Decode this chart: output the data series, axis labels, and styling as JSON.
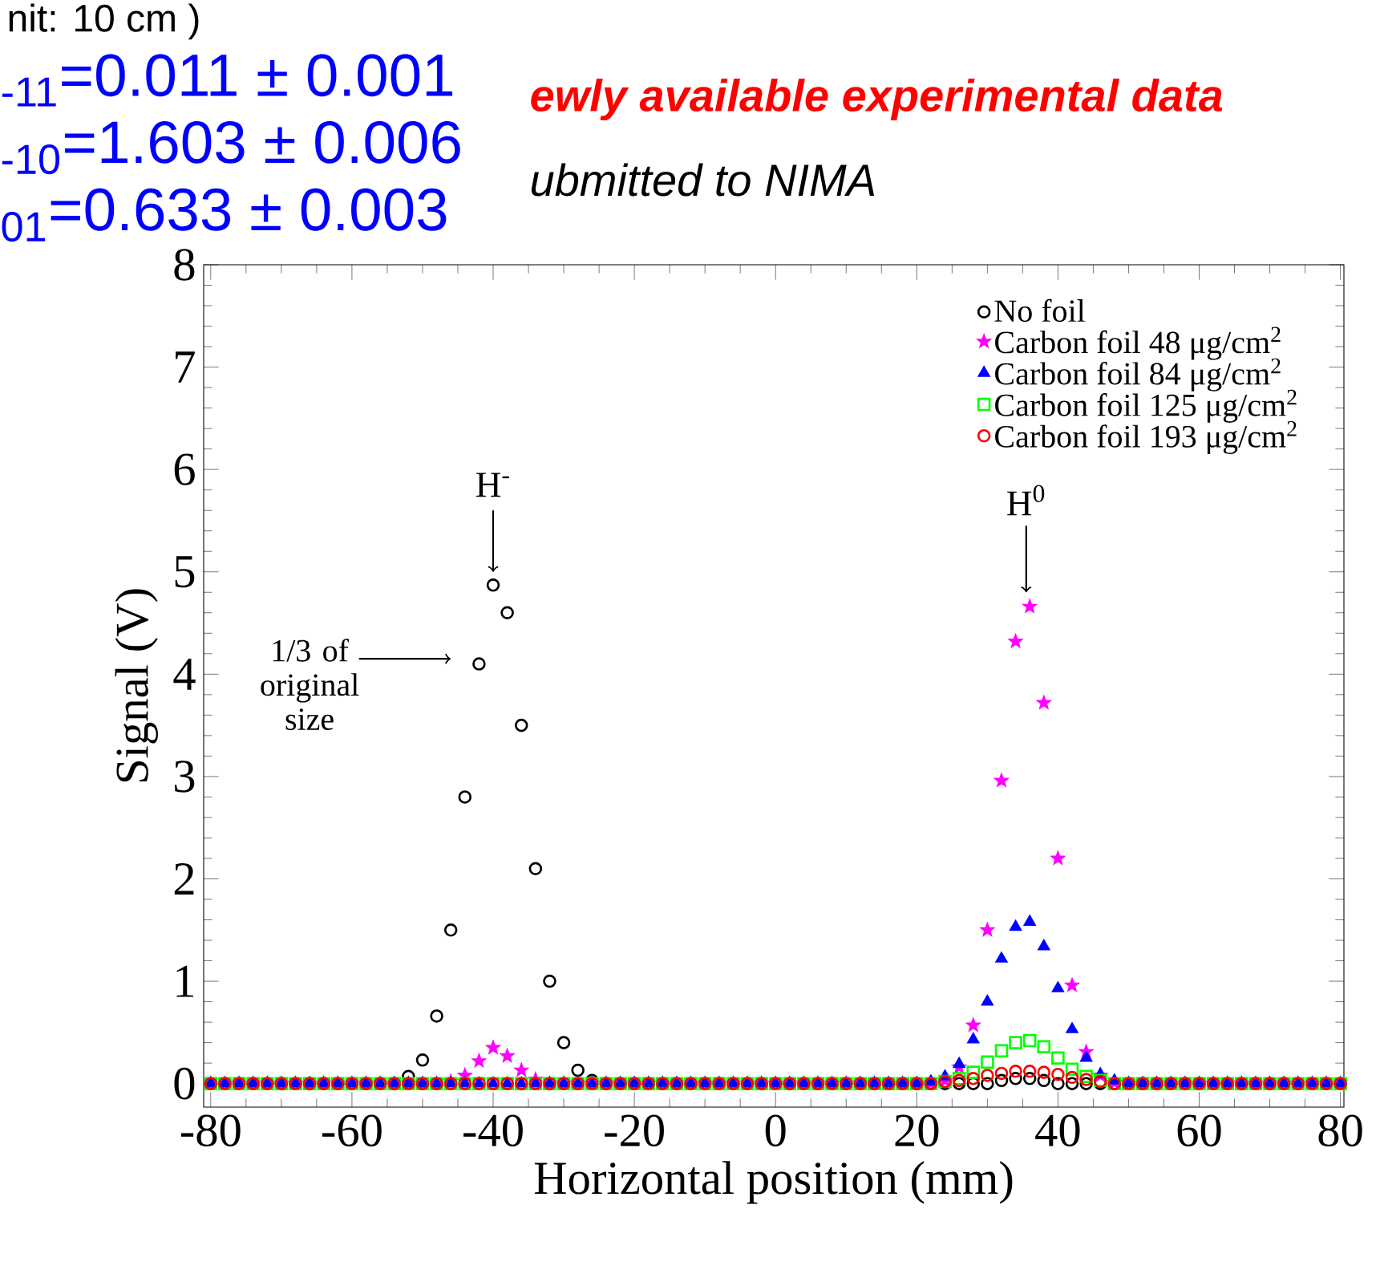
{
  "chart_data": {
    "type": "scatter",
    "xlabel": "Horizontal position (mm)",
    "ylabel": "Signal (V)",
    "xlim": [
      -81,
      80.5
    ],
    "ylim": [
      -0.23,
      8
    ],
    "xticks": [
      -80,
      -60,
      -40,
      -20,
      0,
      20,
      40,
      60,
      80
    ],
    "yticks": [
      0,
      1,
      2,
      3,
      4,
      5,
      6,
      7,
      8
    ],
    "legend": "top right",
    "x": [
      -80,
      -78,
      -76,
      -74,
      -72,
      -70,
      -68,
      -66,
      -64,
      -62,
      -60,
      -58,
      -56,
      -54,
      -52,
      -50,
      -48,
      -46,
      -44,
      -42,
      -40,
      -38,
      -36,
      -34,
      -32,
      -30,
      -28,
      -26,
      -24,
      -22,
      -20,
      -18,
      -16,
      -14,
      -12,
      -10,
      -8,
      -6,
      -4,
      -2,
      0,
      2,
      4,
      6,
      8,
      10,
      12,
      14,
      16,
      18,
      20,
      22,
      24,
      26,
      28,
      30,
      32,
      34,
      36,
      38,
      40,
      42,
      44,
      46,
      48,
      50,
      52,
      54,
      56,
      58,
      60,
      62,
      64,
      66,
      68,
      70,
      72,
      74,
      76,
      78,
      80
    ],
    "series": [
      {
        "name": "No foil",
        "color": "#000000",
        "marker": "circle",
        "values": [
          0,
          0,
          0,
          0,
          0,
          0,
          0,
          0,
          0,
          0,
          0,
          0,
          0,
          0,
          0.07,
          0.23,
          0.66,
          1.5,
          2.8,
          4.1,
          4.87,
          4.6,
          3.5,
          2.1,
          1.0,
          0.4,
          0.13,
          0.03,
          0,
          0,
          0,
          0,
          0,
          0,
          0,
          0,
          0,
          0,
          0,
          0,
          0,
          0,
          0,
          0,
          0,
          0,
          0,
          0,
          0,
          0,
          0,
          0,
          0,
          0,
          0,
          0,
          0.03,
          0.05,
          0.05,
          0.03,
          0,
          0,
          0,
          0,
          0,
          0,
          0,
          0,
          0,
          0,
          0,
          0,
          0,
          0,
          0,
          0,
          0,
          0,
          0,
          0,
          0
        ]
      },
      {
        "name": "Carbon foil   48 μg/cm$^{2}$",
        "color": "#ff00ff",
        "marker": "star",
        "values": [
          0,
          0,
          0,
          0,
          0,
          0,
          0,
          0,
          0,
          0,
          0,
          0,
          0,
          0,
          0,
          0,
          0,
          0.02,
          0.08,
          0.22,
          0.35,
          0.27,
          0.13,
          0.04,
          0,
          0,
          0,
          0,
          0,
          0,
          0,
          0,
          0,
          0,
          0,
          0,
          0,
          0,
          0,
          0,
          0,
          0,
          0,
          0,
          0,
          0,
          0,
          0,
          0,
          0,
          0,
          0,
          0.03,
          0.16,
          0.57,
          1.5,
          2.96,
          4.32,
          4.66,
          3.72,
          2.2,
          0.96,
          0.31,
          0.08,
          0.01,
          0,
          0,
          0,
          0,
          0,
          0,
          0,
          0,
          0,
          0,
          0,
          0,
          0,
          0,
          0,
          0
        ]
      },
      {
        "name": "Carbon foil   84 μg/cm$^{2}$",
        "color": "#0000ff",
        "marker": "triangle",
        "values": [
          0,
          0,
          0,
          0,
          0,
          0,
          0,
          0,
          0,
          0,
          0,
          0,
          0,
          0,
          0,
          0,
          0,
          0,
          0,
          0,
          0,
          0,
          0,
          0,
          0,
          0,
          0,
          0,
          0,
          0,
          0,
          0,
          0,
          0,
          0,
          0,
          0,
          0,
          0,
          0,
          0,
          0,
          0,
          0,
          0,
          0,
          0,
          0,
          0,
          0,
          0,
          0.02,
          0.07,
          0.19,
          0.43,
          0.8,
          1.22,
          1.53,
          1.58,
          1.34,
          0.93,
          0.53,
          0.25,
          0.09,
          0.03,
          0,
          0,
          0,
          0,
          0,
          0,
          0,
          0,
          0,
          0,
          0,
          0,
          0,
          0,
          0,
          0
        ]
      },
      {
        "name": "Carbon foil 125 μg/cm$^{2}$",
        "color": "#00ff00",
        "marker": "square",
        "values": [
          0,
          0,
          0,
          0,
          0,
          0,
          0,
          0,
          0,
          0,
          0,
          0,
          0,
          0,
          0,
          0,
          0,
          0,
          0,
          0,
          0,
          0,
          0,
          0,
          0,
          0,
          0,
          0,
          0,
          0,
          0,
          0,
          0,
          0,
          0,
          0,
          0,
          0,
          0,
          0,
          0,
          0,
          0,
          0,
          0,
          0,
          0,
          0,
          0,
          0,
          0,
          0,
          0.02,
          0.05,
          0.11,
          0.21,
          0.32,
          0.4,
          0.42,
          0.36,
          0.25,
          0.14,
          0.07,
          0.03,
          0,
          0,
          0,
          0,
          0,
          0,
          0,
          0,
          0,
          0,
          0,
          0,
          0,
          0,
          0,
          0,
          0
        ]
      },
      {
        "name": "Carbon foil 193 μg/cm$^{2}$",
        "color": "#ff0000",
        "marker": "circle",
        "values": [
          0,
          0,
          0,
          0,
          0,
          0,
          0,
          0,
          0,
          0,
          0,
          0,
          0,
          0,
          0,
          0,
          0,
          0,
          0,
          0,
          0,
          0,
          0,
          0,
          0,
          0,
          0,
          0,
          0,
          0,
          0,
          0,
          0,
          0,
          0,
          0,
          0,
          0,
          0,
          0,
          0,
          0,
          0,
          0,
          0,
          0,
          0,
          0,
          0,
          0,
          0,
          0,
          0.02,
          0.03,
          0.05,
          0.08,
          0.1,
          0.12,
          0.12,
          0.11,
          0.09,
          0.06,
          0.04,
          0.02,
          0,
          0,
          0,
          0,
          0,
          0,
          0,
          0,
          0,
          0,
          0,
          0,
          0,
          0,
          0,
          0,
          0
        ]
      }
    ],
    "annotations": [
      "nit: 10    cm )",
      "$_{-11}$=0.011 ± 0.001",
      "$_{-10}$=1.603 ± 0.006",
      "$_{01}$=0.633 ± 0.003",
      "ewly available experimental data",
      "ubmitted to NIMA",
      "H$^{-}$",
      "H$^{0}$",
      "1/3 of original size"
    ]
  }
}
